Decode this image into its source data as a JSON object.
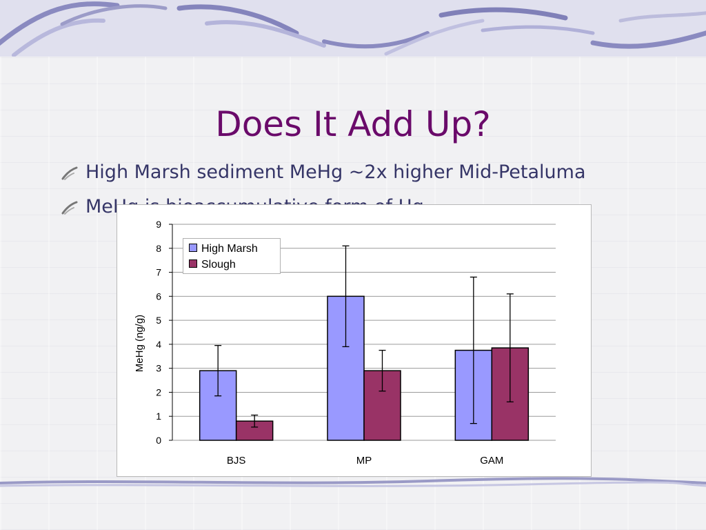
{
  "slide": {
    "title": "Does It Add Up?",
    "bullets": [
      "High Marsh sediment MeHg ~2x higher Mid-Petaluma",
      "MeHg is bioaccumulative form of Hg"
    ],
    "colors": {
      "title": "#6a0a6a",
      "bullet_text": "#353567",
      "background": "#f1f1f3",
      "decor_stroke": "#7f7fb8"
    }
  },
  "chart_data": {
    "type": "bar",
    "title": "",
    "xlabel": "",
    "ylabel": "MeHg (ng/g)",
    "ylim": [
      0,
      9
    ],
    "yticks": [
      0,
      1,
      2,
      3,
      4,
      5,
      6,
      7,
      8,
      9
    ],
    "grid": true,
    "legend_position": "top-left",
    "categories": [
      "BJS",
      "MP",
      "GAM"
    ],
    "series": [
      {
        "name": "High Marsh",
        "color": "#9999ff",
        "values": [
          2.9,
          6.0,
          3.75
        ],
        "error": [
          1.05,
          2.1,
          3.05
        ]
      },
      {
        "name": "Slough",
        "color": "#993366",
        "values": [
          0.8,
          2.9,
          3.85
        ],
        "error": [
          0.25,
          0.85,
          2.25
        ]
      }
    ]
  }
}
